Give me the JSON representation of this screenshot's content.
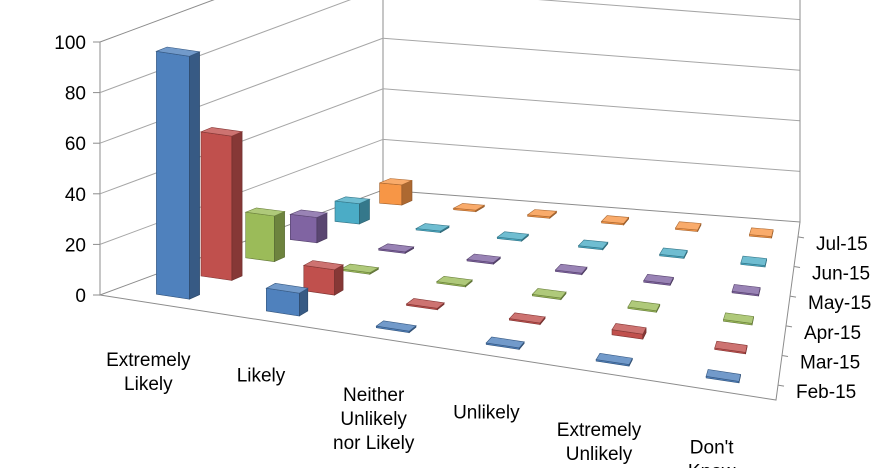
{
  "chart_data": {
    "type": "bar",
    "subtype": "3d-column",
    "categories": [
      [
        "Extremely",
        "Likely"
      ],
      [
        "Likely"
      ],
      [
        "Neither",
        "Unlikely",
        "nor Likely"
      ],
      [
        "Unlikely"
      ],
      [
        "Extremely",
        "Unlikely"
      ],
      [
        "Don't",
        "Know"
      ]
    ],
    "series": [
      {
        "name": "Feb-15",
        "color": "#4f81bd",
        "values": [
          96,
          9,
          0,
          0,
          0,
          0
        ]
      },
      {
        "name": "Mar-15",
        "color": "#c0504d",
        "values": [
          57,
          10,
          0,
          0,
          2,
          0
        ]
      },
      {
        "name": "Apr-15",
        "color": "#9bbb59",
        "values": [
          18,
          0,
          0,
          0,
          0,
          0
        ]
      },
      {
        "name": "May-15",
        "color": "#8064a2",
        "values": [
          10,
          0,
          0,
          0,
          0,
          0
        ]
      },
      {
        "name": "Jun-15",
        "color": "#4bacc6",
        "values": [
          8,
          0,
          0,
          0,
          0,
          0
        ]
      },
      {
        "name": "Jul-15",
        "color": "#f79646",
        "values": [
          8,
          0,
          0,
          0,
          0,
          0
        ]
      }
    ],
    "ylim": [
      0,
      100
    ],
    "yticks": [
      "0",
      "20",
      "40",
      "60",
      "80",
      "100"
    ],
    "grid": true,
    "legend": "none"
  }
}
